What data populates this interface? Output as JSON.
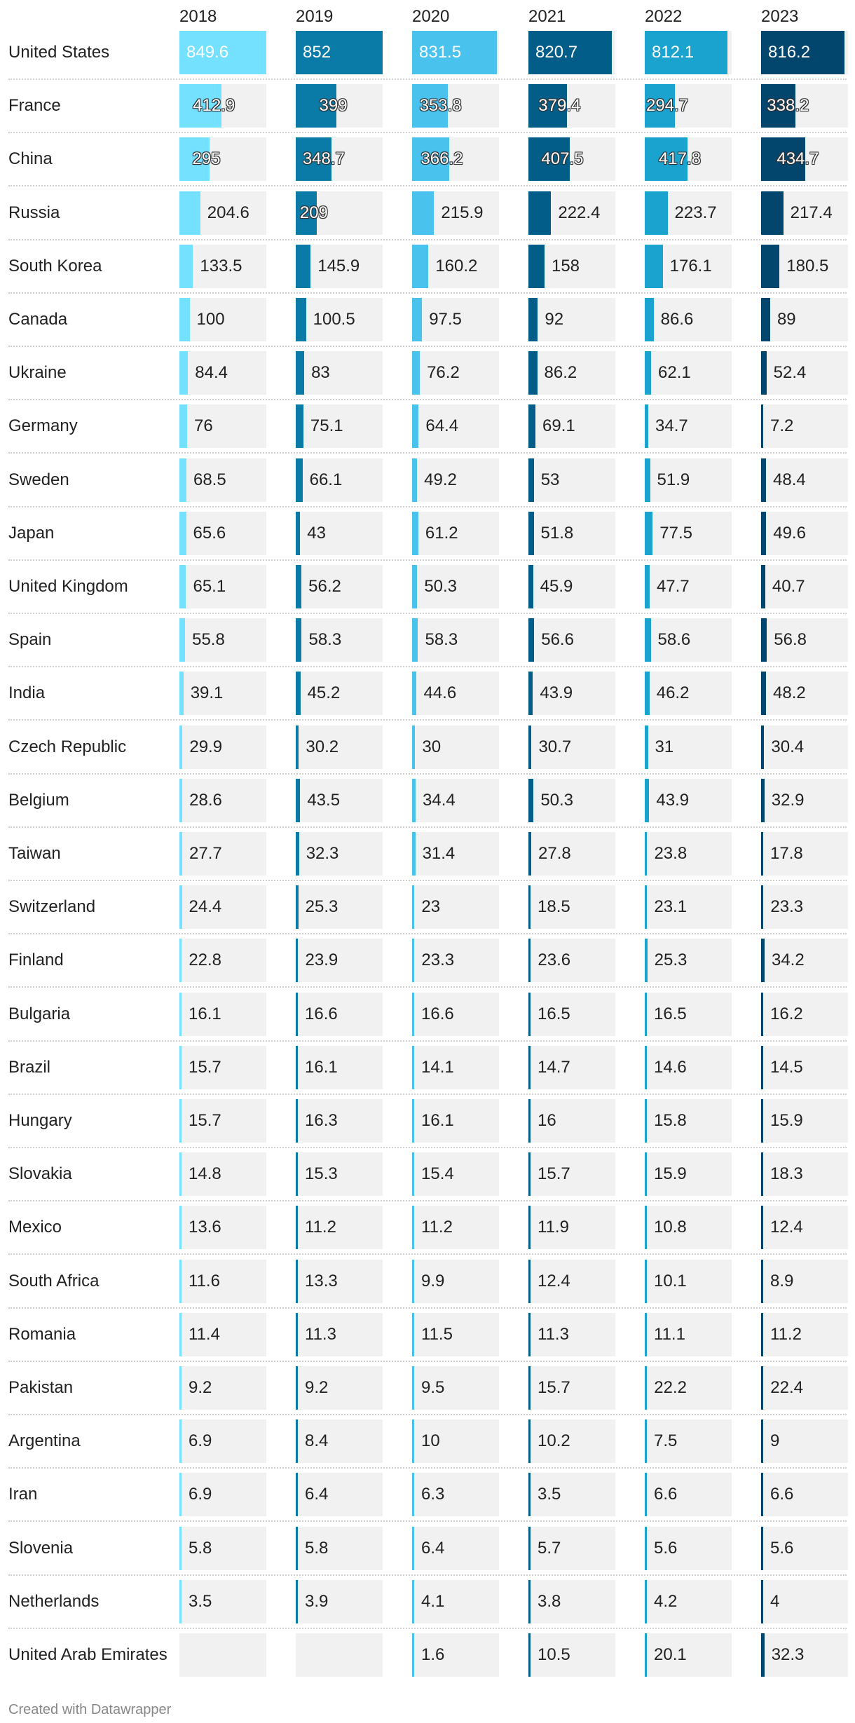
{
  "chart_data": {
    "type": "table",
    "title": "",
    "columns": [
      "2018",
      "2019",
      "2020",
      "2021",
      "2022",
      "2023"
    ],
    "column_colors": [
      "#73e1ff",
      "#0a7aa6",
      "#4ac2ee",
      "#035d89",
      "#1aa3cf",
      "#02456d"
    ],
    "rows": [
      {
        "country": "United States",
        "values": [
          849.6,
          852,
          831.5,
          820.7,
          812.1,
          816.2
        ]
      },
      {
        "country": "France",
        "values": [
          412.9,
          399,
          353.8,
          379.4,
          294.7,
          338.2
        ]
      },
      {
        "country": "China",
        "values": [
          295,
          348.7,
          366.2,
          407.5,
          417.8,
          434.7
        ]
      },
      {
        "country": "Russia",
        "values": [
          204.6,
          209,
          215.9,
          222.4,
          223.7,
          217.4
        ]
      },
      {
        "country": "South Korea",
        "values": [
          133.5,
          145.9,
          160.2,
          158,
          176.1,
          180.5
        ]
      },
      {
        "country": "Canada",
        "values": [
          100,
          100.5,
          97.5,
          92,
          86.6,
          89
        ]
      },
      {
        "country": "Ukraine",
        "values": [
          84.4,
          83,
          76.2,
          86.2,
          62.1,
          52.4
        ]
      },
      {
        "country": "Germany",
        "values": [
          76,
          75.1,
          64.4,
          69.1,
          34.7,
          7.2
        ]
      },
      {
        "country": "Sweden",
        "values": [
          68.5,
          66.1,
          49.2,
          53,
          51.9,
          48.4
        ]
      },
      {
        "country": "Japan",
        "values": [
          65.6,
          43,
          61.2,
          51.8,
          77.5,
          49.6
        ]
      },
      {
        "country": "United Kingdom",
        "values": [
          65.1,
          56.2,
          50.3,
          45.9,
          47.7,
          40.7
        ]
      },
      {
        "country": "Spain",
        "values": [
          55.8,
          58.3,
          58.3,
          56.6,
          58.6,
          56.8
        ]
      },
      {
        "country": "India",
        "values": [
          39.1,
          45.2,
          44.6,
          43.9,
          46.2,
          48.2
        ]
      },
      {
        "country": "Czech Republic",
        "values": [
          29.9,
          30.2,
          30,
          30.7,
          31,
          30.4
        ]
      },
      {
        "country": "Belgium",
        "values": [
          28.6,
          43.5,
          34.4,
          50.3,
          43.9,
          32.9
        ]
      },
      {
        "country": "Taiwan",
        "values": [
          27.7,
          32.3,
          31.4,
          27.8,
          23.8,
          17.8
        ]
      },
      {
        "country": "Switzerland",
        "values": [
          24.4,
          25.3,
          23,
          18.5,
          23.1,
          23.3
        ]
      },
      {
        "country": "Finland",
        "values": [
          22.8,
          23.9,
          23.3,
          23.6,
          25.3,
          34.2
        ]
      },
      {
        "country": "Bulgaria",
        "values": [
          16.1,
          16.6,
          16.6,
          16.5,
          16.5,
          16.2
        ]
      },
      {
        "country": "Brazil",
        "values": [
          15.7,
          16.1,
          14.1,
          14.7,
          14.6,
          14.5
        ]
      },
      {
        "country": "Hungary",
        "values": [
          15.7,
          16.3,
          16.1,
          16,
          15.8,
          15.9
        ]
      },
      {
        "country": "Slovakia",
        "values": [
          14.8,
          15.3,
          15.4,
          15.7,
          15.9,
          18.3
        ]
      },
      {
        "country": "Mexico",
        "values": [
          13.6,
          11.2,
          11.2,
          11.9,
          10.8,
          12.4
        ]
      },
      {
        "country": "South Africa",
        "values": [
          11.6,
          13.3,
          9.9,
          12.4,
          10.1,
          8.9
        ]
      },
      {
        "country": "Romania",
        "values": [
          11.4,
          11.3,
          11.5,
          11.3,
          11.1,
          11.2
        ]
      },
      {
        "country": "Pakistan",
        "values": [
          9.2,
          9.2,
          9.5,
          15.7,
          22.2,
          22.4
        ]
      },
      {
        "country": "Argentina",
        "values": [
          6.9,
          8.4,
          10,
          10.2,
          7.5,
          9
        ]
      },
      {
        "country": "Iran",
        "values": [
          6.9,
          6.4,
          6.3,
          3.5,
          6.6,
          6.6
        ]
      },
      {
        "country": "Slovenia",
        "values": [
          5.8,
          5.8,
          6.4,
          5.7,
          5.6,
          5.6
        ]
      },
      {
        "country": "Netherlands",
        "values": [
          3.5,
          3.9,
          4.1,
          3.8,
          4.2,
          4
        ]
      },
      {
        "country": "United Arab Emirates",
        "values": [
          null,
          null,
          1.6,
          10.5,
          20.1,
          32.3
        ]
      }
    ],
    "scale_max": 852
  },
  "footer": "Created with Datawrapper"
}
